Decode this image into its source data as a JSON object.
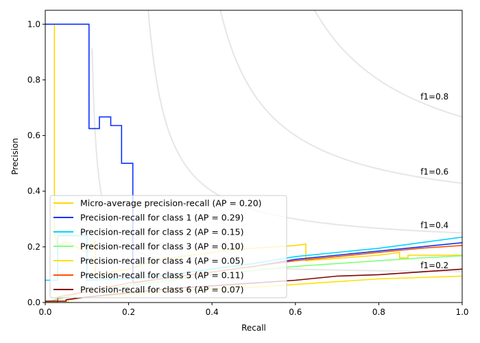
{
  "chart_data": {
    "type": "line",
    "title": "",
    "xlabel": "Recall",
    "ylabel": "Precision",
    "xlim": [
      0.0,
      1.0
    ],
    "ylim": [
      0.0,
      1.05
    ],
    "xticks": [
      "0.0",
      "0.2",
      "0.4",
      "0.6",
      "0.8",
      "1.0"
    ],
    "yticks": [
      "0.0",
      "0.2",
      "0.4",
      "0.6",
      "0.8",
      "1.0"
    ],
    "xtick_values": [
      0,
      0.2,
      0.4,
      0.6,
      0.8,
      1.0
    ],
    "ytick_values": [
      0,
      0.2,
      0.4,
      0.6,
      0.8,
      1.0
    ],
    "legend_position": "lower-left",
    "iso_f1": [
      {
        "f": 0.2,
        "label": "f1=0.2"
      },
      {
        "f": 0.4,
        "label": "f1=0.4"
      },
      {
        "f": 0.6,
        "label": "f1=0.6"
      },
      {
        "f": 0.8,
        "label": "f1=0.8"
      }
    ],
    "iso_color": "#e6e6e6",
    "series": [
      {
        "name": "Micro-average precision-recall (AP = 0.20)",
        "color": "#ffd700",
        "x": [
          0,
          0.022,
          0.022,
          0.03,
          0.05,
          0.1,
          0.12,
          0.12,
          0.2,
          0.26,
          0.3,
          0.4,
          0.45,
          0.55,
          0.6,
          0.625,
          0.625,
          0.8,
          0.85,
          0.85,
          0.87,
          0.87,
          1.0
        ],
        "y": [
          1.0,
          1.0,
          0.25,
          0.2,
          0.22,
          0.18,
          0.22,
          0.1,
          0.12,
          0.15,
          0.16,
          0.18,
          0.19,
          0.2,
          0.205,
          0.21,
          0.15,
          0.17,
          0.18,
          0.16,
          0.16,
          0.17,
          0.17
        ]
      },
      {
        "name": "Precision-recall for class 1 (AP = 0.29)",
        "color": "#0a30ff",
        "x": [
          0,
          0.105,
          0.105,
          0.13,
          0.13,
          0.157,
          0.157,
          0.183,
          0.183,
          0.21,
          0.21,
          0.3,
          0.4,
          0.5,
          0.6,
          0.7,
          0.8,
          0.9,
          1.0
        ],
        "y": [
          1.0,
          1.0,
          0.625,
          0.625,
          0.667,
          0.667,
          0.636,
          0.636,
          0.5,
          0.5,
          0.07,
          0.09,
          0.11,
          0.13,
          0.155,
          0.17,
          0.185,
          0.2,
          0.215
        ]
      },
      {
        "name": "Precision-recall for class 2 (AP = 0.15)",
        "color": "#00d4ff",
        "x": [
          0,
          0.03,
          0.03,
          0.1,
          0.1,
          0.2,
          0.3,
          0.4,
          0.5,
          0.6,
          0.7,
          0.8,
          0.9,
          1.0
        ],
        "y": [
          0.08,
          0.08,
          0.24,
          0.24,
          0.08,
          0.085,
          0.1,
          0.12,
          0.14,
          0.165,
          0.18,
          0.195,
          0.215,
          0.235
        ]
      },
      {
        "name": "Precision-recall for class 3 (AP = 0.10)",
        "color": "#80ff7a",
        "x": [
          0,
          0.05,
          0.1,
          0.2,
          0.3,
          0.4,
          0.5,
          0.6,
          0.7,
          0.8,
          0.9,
          1.0
        ],
        "y": [
          0.0,
          0.02,
          0.04,
          0.06,
          0.08,
          0.1,
          0.115,
          0.13,
          0.14,
          0.15,
          0.16,
          0.168
        ]
      },
      {
        "name": "Precision-recall for class 4 (AP = 0.05)",
        "color": "#ffe000",
        "x": [
          0,
          0.055,
          0.055,
          0.1,
          0.2,
          0.3,
          0.4,
          0.5,
          0.6,
          0.7,
          0.8,
          0.9,
          1.0
        ],
        "y": [
          0.0,
          0.0,
          0.01,
          0.02,
          0.03,
          0.04,
          0.05,
          0.055,
          0.065,
          0.075,
          0.085,
          0.09,
          0.095
        ]
      },
      {
        "name": "Precision-recall for class 5 (AP = 0.11)",
        "color": "#ff5000",
        "x": [
          0,
          0.03,
          0.03,
          0.1,
          0.2,
          0.3,
          0.4,
          0.5,
          0.6,
          0.7,
          0.8,
          0.9,
          1.0
        ],
        "y": [
          0.0,
          0.0,
          0.02,
          0.04,
          0.07,
          0.09,
          0.11,
          0.13,
          0.15,
          0.165,
          0.18,
          0.195,
          0.205
        ]
      },
      {
        "name": "Precision-recall for class 6 (AP = 0.07)",
        "color": "#800000",
        "x": [
          0,
          0.05,
          0.05,
          0.1,
          0.2,
          0.3,
          0.4,
          0.5,
          0.6,
          0.7,
          0.8,
          0.9,
          1.0
        ],
        "y": [
          0.005,
          0.005,
          0.01,
          0.02,
          0.035,
          0.05,
          0.06,
          0.07,
          0.08,
          0.095,
          0.1,
          0.11,
          0.12
        ]
      }
    ]
  }
}
